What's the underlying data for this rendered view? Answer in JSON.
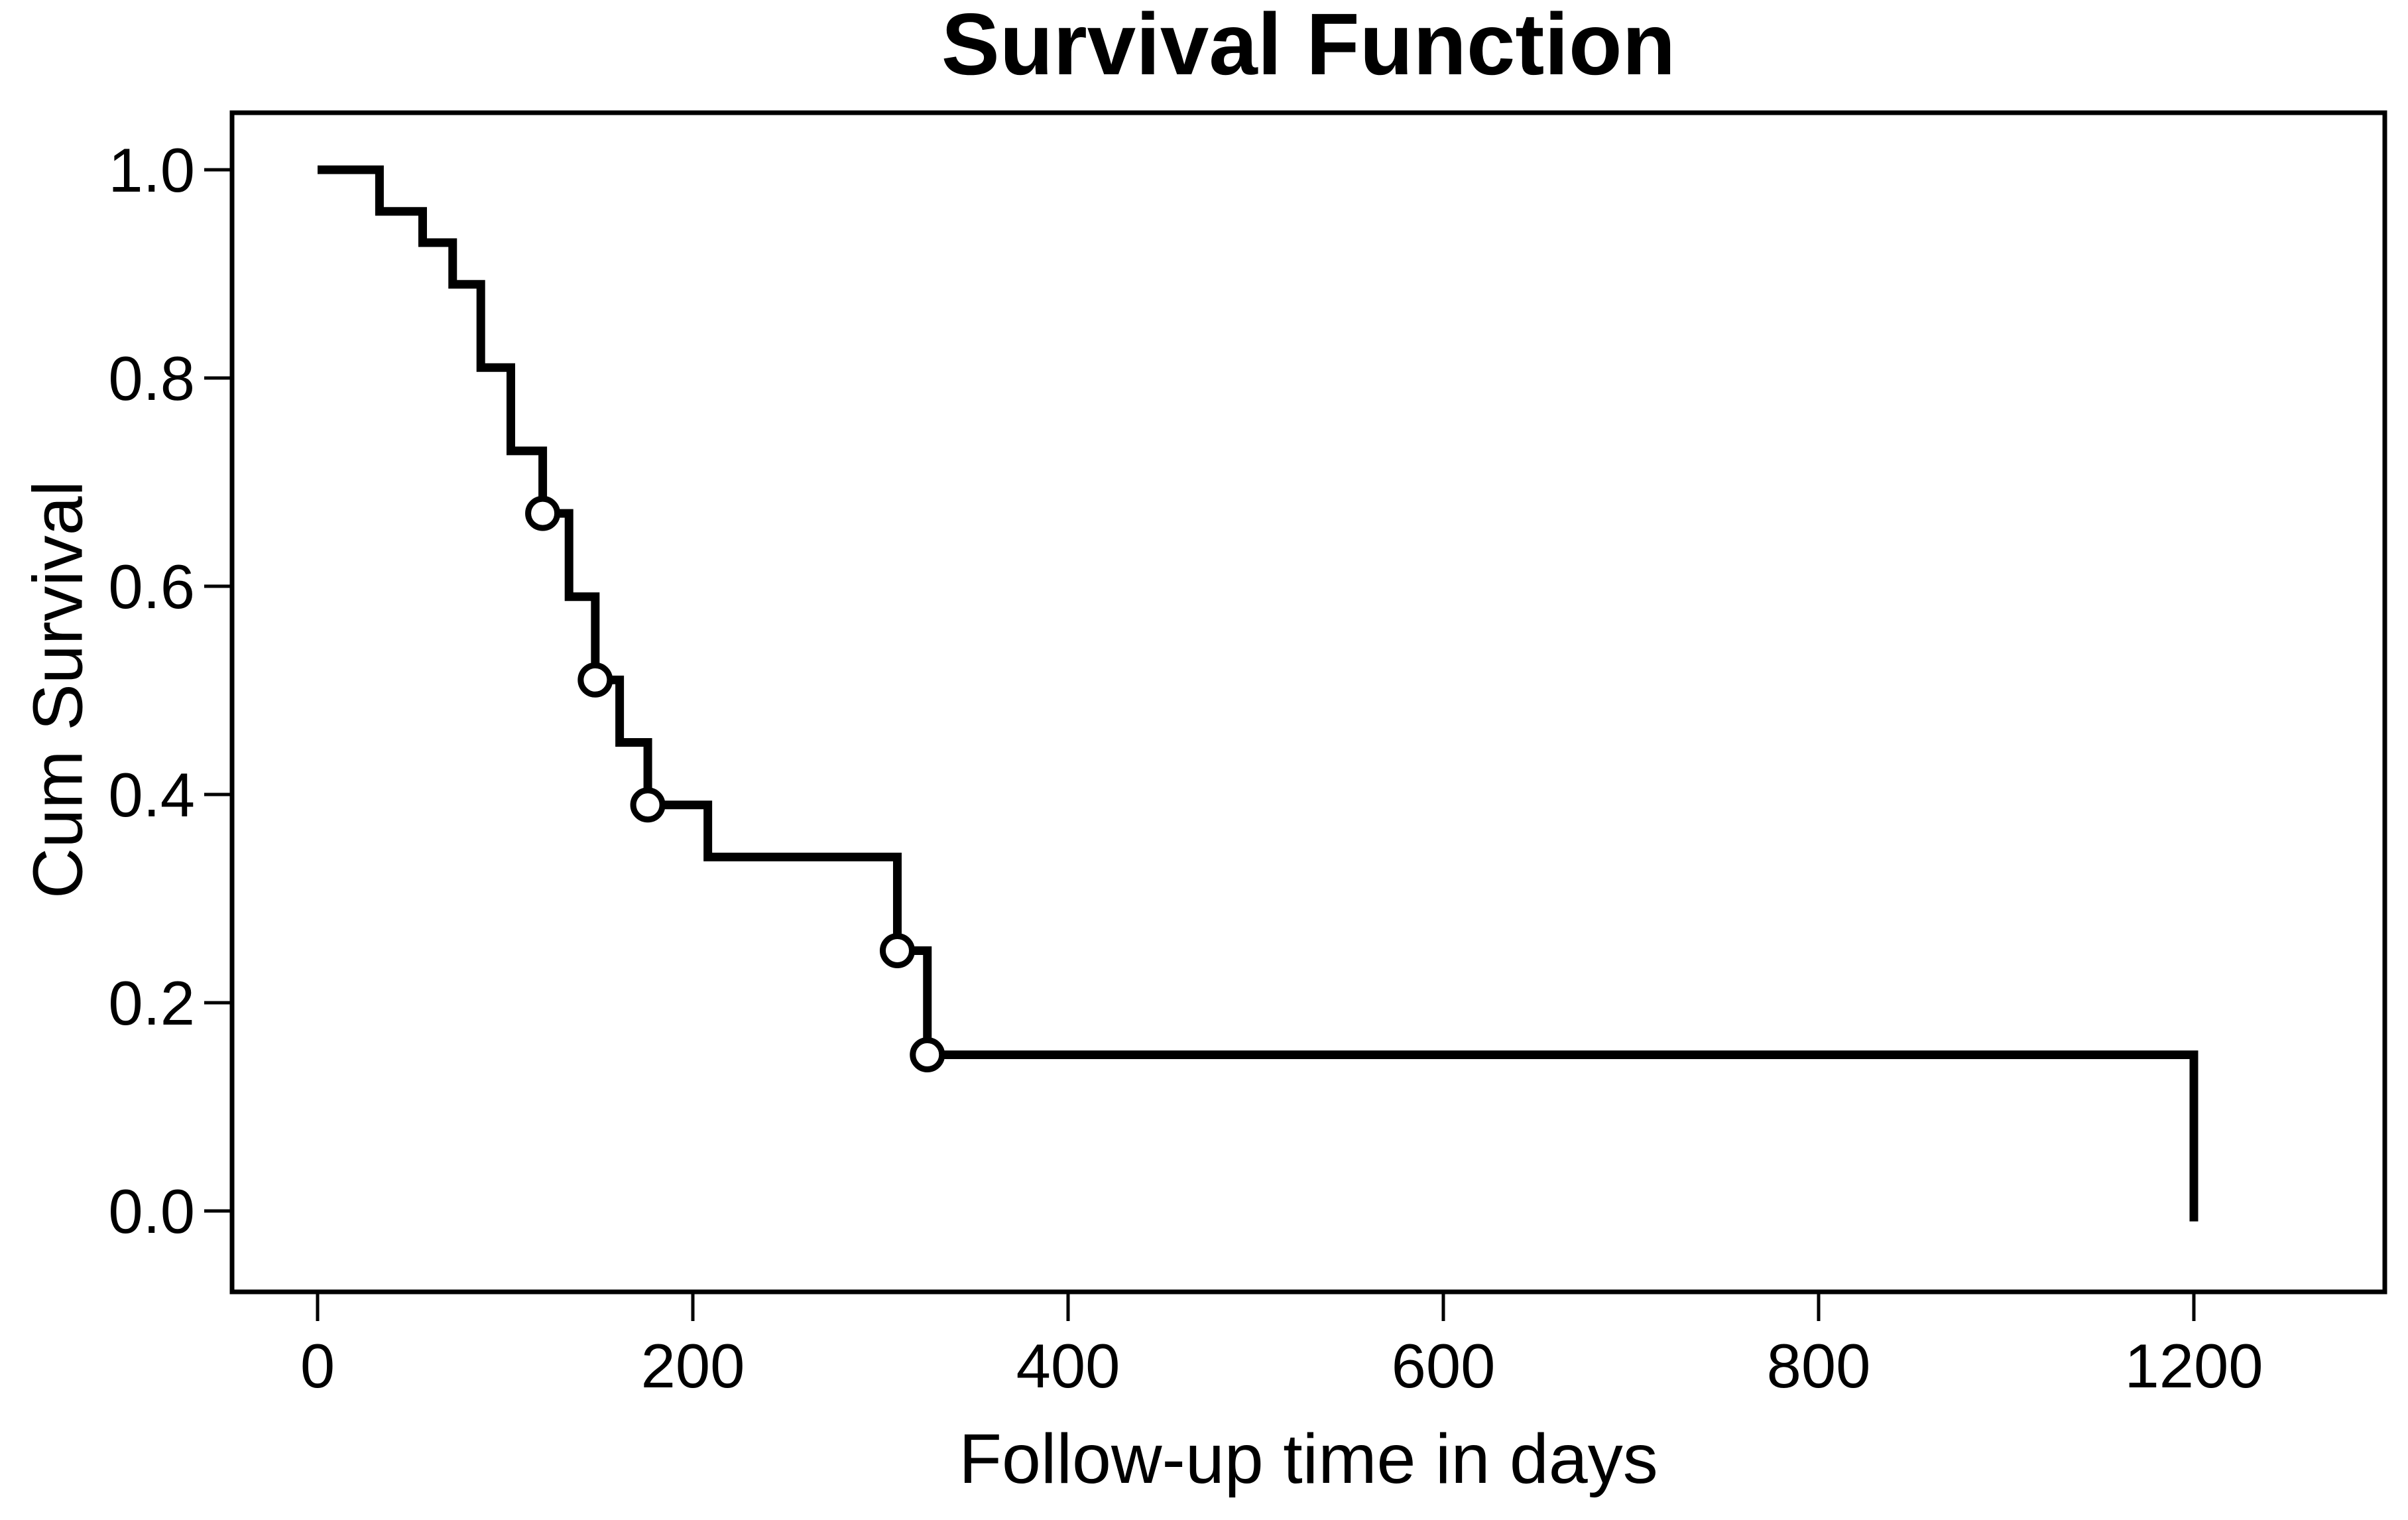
{
  "chart": {
    "title": "Survival Function",
    "xlabel": "Follow-up time in days",
    "ylabel": "Cum Survival"
  },
  "chart_data": {
    "type": "line",
    "subtype": "kaplan-meier-step",
    "title": "Survival Function",
    "xlabel": "Follow-up time in days",
    "ylabel": "Cum Survival",
    "grid": false,
    "legend": false,
    "line_color": "#000000",
    "censor_marker": "open-circle",
    "censor_fill": "#ffffff",
    "background": "#ffffff",
    "x_ticks": {
      "labels": [
        "0",
        "200",
        "400",
        "600",
        "800",
        "1200"
      ],
      "values": [
        0,
        200,
        400,
        600,
        800,
        1200
      ]
    },
    "y_ticks": {
      "labels": [
        "1.0",
        "0.8",
        "0.6",
        "0.4",
        "0.2",
        "0.0"
      ],
      "values": [
        1.0,
        0.8,
        0.6,
        0.4,
        0.2,
        0.0
      ]
    },
    "ylim": [
      0.0,
      1.0
    ],
    "steps": [
      [
        0,
        1.0
      ],
      [
        33,
        0.96
      ],
      [
        56,
        0.93
      ],
      [
        72,
        0.89
      ],
      [
        87,
        0.81
      ],
      [
        103,
        0.73
      ],
      [
        120,
        0.67
      ],
      [
        134,
        0.59
      ],
      [
        148,
        0.51
      ],
      [
        161,
        0.45
      ],
      [
        176,
        0.39
      ],
      [
        208,
        0.34
      ],
      [
        309,
        0.25
      ],
      [
        325,
        0.15
      ],
      [
        1200,
        -0.01
      ]
    ],
    "censored": [
      [
        120,
        0.67
      ],
      [
        148,
        0.51
      ],
      [
        176,
        0.39
      ],
      [
        309,
        0.25
      ],
      [
        325,
        0.15
      ]
    ]
  }
}
